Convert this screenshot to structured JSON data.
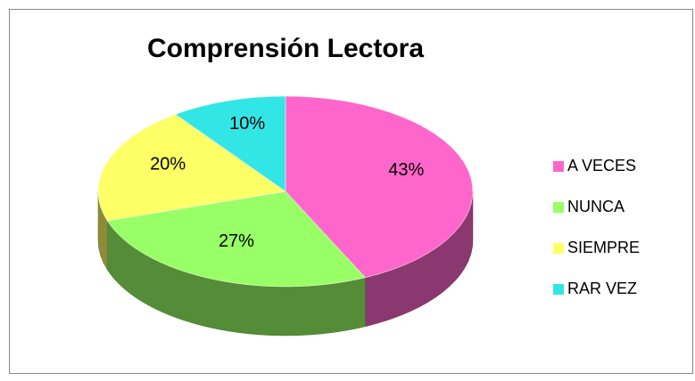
{
  "chart_data": {
    "type": "pie",
    "title": "Comprensión Lectora",
    "categories": [
      "A VECES",
      "NUNCA",
      "SIEMPRE",
      "RAR VEZ"
    ],
    "values": [
      43,
      27,
      20,
      10
    ],
    "value_labels": [
      "43%",
      "27%",
      "20%",
      "10%"
    ],
    "colors": [
      "#ff66cc",
      "#99ff66",
      "#ffff66",
      "#33e6e6"
    ],
    "legend": "right"
  }
}
